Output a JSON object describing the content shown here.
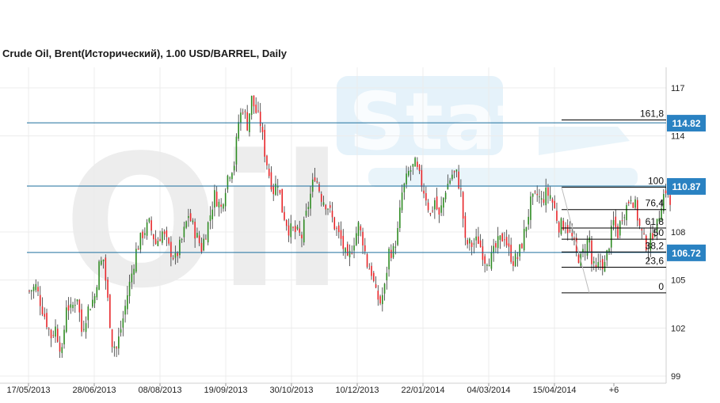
{
  "chart_data": {
    "type": "candlestick",
    "title": "Crude Oil, Brent(Исторический), 1.00 USD/BARREL, Daily",
    "watermark": {
      "text_main": "Oil",
      "text_accent": "Stat"
    },
    "ylim": [
      98.2,
      118.2
    ],
    "y_ticks": [
      "117",
      "114",
      "108",
      "105",
      "102",
      "99"
    ],
    "x_ticks": [
      "17/05/2013",
      "28/06/2013",
      "08/08/2013",
      "19/09/2013",
      "30/10/2013",
      "10/12/2013",
      "22/01/2014",
      "04/03/2014",
      "15/04/2014",
      "+6"
    ],
    "x_count": 262,
    "colors": {
      "up": "#2e8b22",
      "down": "#e8262a",
      "level_line": "#1d6f9e",
      "tag_bg": "#2a82c2",
      "grid": "#ececec"
    },
    "horizontal_levels": [
      {
        "label": "114.82",
        "value": 114.82
      },
      {
        "label": "110.87",
        "value": 110.87
      },
      {
        "label": "106.72",
        "value": 106.72
      }
    ],
    "fibonacci": {
      "start_index": 220,
      "end_index": 262,
      "levels": [
        {
          "label": "161,8",
          "value": 115.0
        },
        {
          "label": "100",
          "value": 110.8
        },
        {
          "label": "76,4",
          "value": 109.4
        },
        {
          "label": "61,8",
          "value": 108.25
        },
        {
          "label": "50",
          "value": 107.55
        },
        {
          "label": "38,2",
          "value": 106.75
        },
        {
          "label": "23,6",
          "value": 105.8
        },
        {
          "label": "0",
          "value": 104.2
        }
      ]
    },
    "close_path": [
      [
        0,
        104.3
      ],
      [
        3,
        104.6
      ],
      [
        6,
        103.2
      ],
      [
        10,
        101.5
      ],
      [
        12,
        102.0
      ],
      [
        15,
        100.4
      ],
      [
        17,
        103.5
      ],
      [
        19,
        103.1
      ],
      [
        22,
        104.0
      ],
      [
        24,
        101.8
      ],
      [
        27,
        103.2
      ],
      [
        30,
        104.0
      ],
      [
        32,
        105.9
      ],
      [
        34,
        106.3
      ],
      [
        36,
        103.7
      ],
      [
        38,
        101.1
      ],
      [
        40,
        100.7
      ],
      [
        43,
        102.6
      ],
      [
        45,
        104.1
      ],
      [
        47,
        105.4
      ],
      [
        49,
        106.8
      ],
      [
        52,
        107.9
      ],
      [
        55,
        108.5
      ],
      [
        58,
        107.3
      ],
      [
        61,
        108.0
      ],
      [
        64,
        107.0
      ],
      [
        67,
        106.3
      ],
      [
        70,
        107.5
      ],
      [
        73,
        109.1
      ],
      [
        76,
        108.0
      ],
      [
        79,
        107.0
      ],
      [
        82,
        108.5
      ],
      [
        85,
        110.3
      ],
      [
        88,
        109.5
      ],
      [
        91,
        111.5
      ],
      [
        94,
        112.3
      ],
      [
        96,
        114.9
      ],
      [
        98,
        115.8
      ],
      [
        100,
        114.7
      ],
      [
        102,
        116.3
      ],
      [
        104,
        115.5
      ],
      [
        106,
        114.8
      ],
      [
        108,
        113.0
      ],
      [
        110,
        111.6
      ],
      [
        112,
        110.6
      ],
      [
        114,
        111.2
      ],
      [
        116,
        109.4
      ],
      [
        119,
        108.2
      ],
      [
        122,
        108.0
      ],
      [
        125,
        107.7
      ],
      [
        128,
        109.7
      ],
      [
        131,
        111.6
      ],
      [
        134,
        110.2
      ],
      [
        137,
        109.6
      ],
      [
        140,
        108.4
      ],
      [
        143,
        107.5
      ],
      [
        146,
        106.1
      ],
      [
        149,
        107.5
      ],
      [
        151,
        108.4
      ],
      [
        153,
        107.5
      ],
      [
        155,
        106.0
      ],
      [
        157,
        105.5
      ],
      [
        159,
        104.1
      ],
      [
        161,
        103.6
      ],
      [
        163,
        104.5
      ],
      [
        165,
        106.8
      ],
      [
        167,
        106.8
      ],
      [
        169,
        108.0
      ],
      [
        171,
        110.4
      ],
      [
        174,
        111.7
      ],
      [
        177,
        112.2
      ],
      [
        180,
        111.0
      ],
      [
        182,
        110.2
      ],
      [
        184,
        109.0
      ],
      [
        186,
        110.0
      ],
      [
        188,
        108.9
      ],
      [
        191,
        110.7
      ],
      [
        194,
        111.6
      ],
      [
        196,
        111.6
      ],
      [
        198,
        110.5
      ],
      [
        200,
        107.3
      ],
      [
        203,
        107.2
      ],
      [
        206,
        107.5
      ],
      [
        209,
        106.3
      ],
      [
        212,
        106.4
      ],
      [
        215,
        107.3
      ],
      [
        218,
        107.8
      ],
      [
        220,
        106.8
      ],
      [
        222,
        106.2
      ],
      [
        224,
        106.4
      ],
      [
        226,
        107.3
      ],
      [
        228,
        108.5
      ],
      [
        230,
        109.8
      ],
      [
        233,
        110.3
      ],
      [
        235,
        109.9
      ],
      [
        237,
        110.4
      ],
      [
        239,
        110.3
      ],
      [
        241,
        109.4
      ],
      [
        243,
        108.4
      ],
      [
        246,
        108.5
      ],
      [
        249,
        107.6
      ],
      [
        251,
        106.6
      ],
      [
        253,
        106.3
      ],
      [
        255,
        107.1
      ],
      [
        257,
        107.6
      ],
      [
        258,
        106.0
      ],
      [
        260,
        105.5
      ],
      [
        262,
        106.2
      ],
      [
        264,
        105.9
      ],
      [
        266,
        107.3
      ],
      [
        268,
        108.6
      ],
      [
        270,
        107.9
      ],
      [
        272,
        109.1
      ],
      [
        274,
        109.6
      ],
      [
        276,
        110.3
      ],
      [
        278,
        109.6
      ],
      [
        280,
        108.3
      ],
      [
        282,
        107.5
      ],
      [
        284,
        107.0
      ],
      [
        286,
        108.0
      ],
      [
        288,
        108.4
      ],
      [
        290,
        109.9
      ],
      [
        292,
        110.7
      ],
      [
        294,
        109.7
      ]
    ]
  }
}
